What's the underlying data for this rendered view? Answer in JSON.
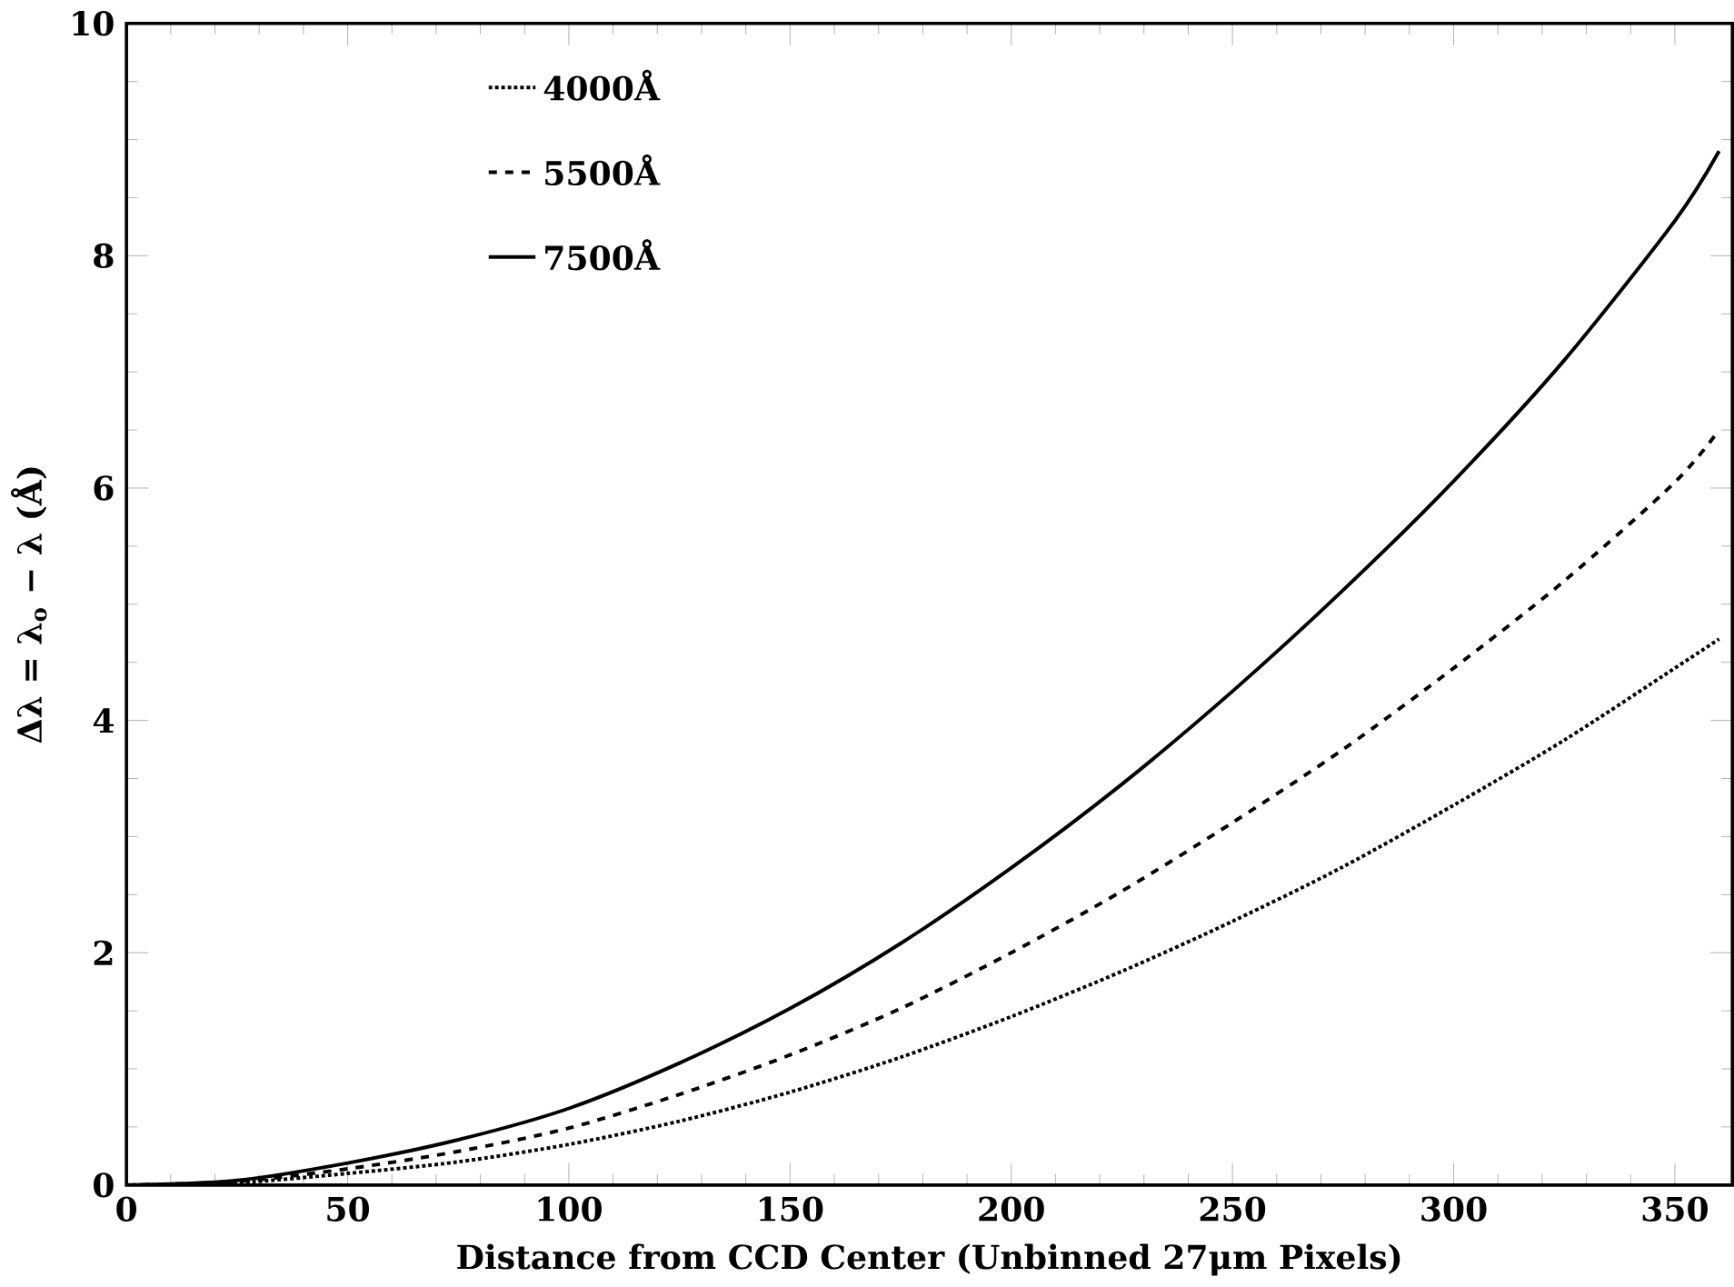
{
  "chart_data": {
    "type": "line",
    "xlabel": "Distance from CCD Center (Unbinned 27μm Pixels)",
    "ylabel": "Δλ = λ$_{o}$ − λ (Å)",
    "xlim": [
      0,
      363
    ],
    "ylim": [
      0,
      10
    ],
    "xticks": [
      0,
      50,
      100,
      150,
      200,
      250,
      300,
      350
    ],
    "yticks": [
      0,
      2,
      4,
      6,
      8,
      10
    ],
    "legend": "top",
    "grid": false,
    "x": [
      0,
      25,
      50,
      75,
      100,
      125,
      150,
      175,
      200,
      225,
      250,
      275,
      300,
      325,
      350,
      360
    ],
    "series": [
      {
        "name": "4000Å",
        "color": "#000000",
        "line_style": "dotted",
        "values": [
          0,
          0.02,
          0.1,
          0.2,
          0.35,
          0.55,
          0.8,
          1.1,
          1.45,
          1.84,
          2.27,
          2.74,
          3.27,
          3.83,
          4.45,
          4.7
        ]
      },
      {
        "name": "5500Å",
        "color": "#000000",
        "line_style": "dashed",
        "values": [
          0,
          0.03,
          0.14,
          0.29,
          0.49,
          0.78,
          1.12,
          1.52,
          2.0,
          2.53,
          3.12,
          3.75,
          4.45,
          5.2,
          6.05,
          6.5
        ]
      },
      {
        "name": "7500Å",
        "color": "#000000",
        "line_style": "solid",
        "values": [
          0,
          0.04,
          0.19,
          0.39,
          0.66,
          1.05,
          1.52,
          2.08,
          2.73,
          3.45,
          4.25,
          5.12,
          6.06,
          7.1,
          8.3,
          8.9
        ]
      }
    ]
  }
}
